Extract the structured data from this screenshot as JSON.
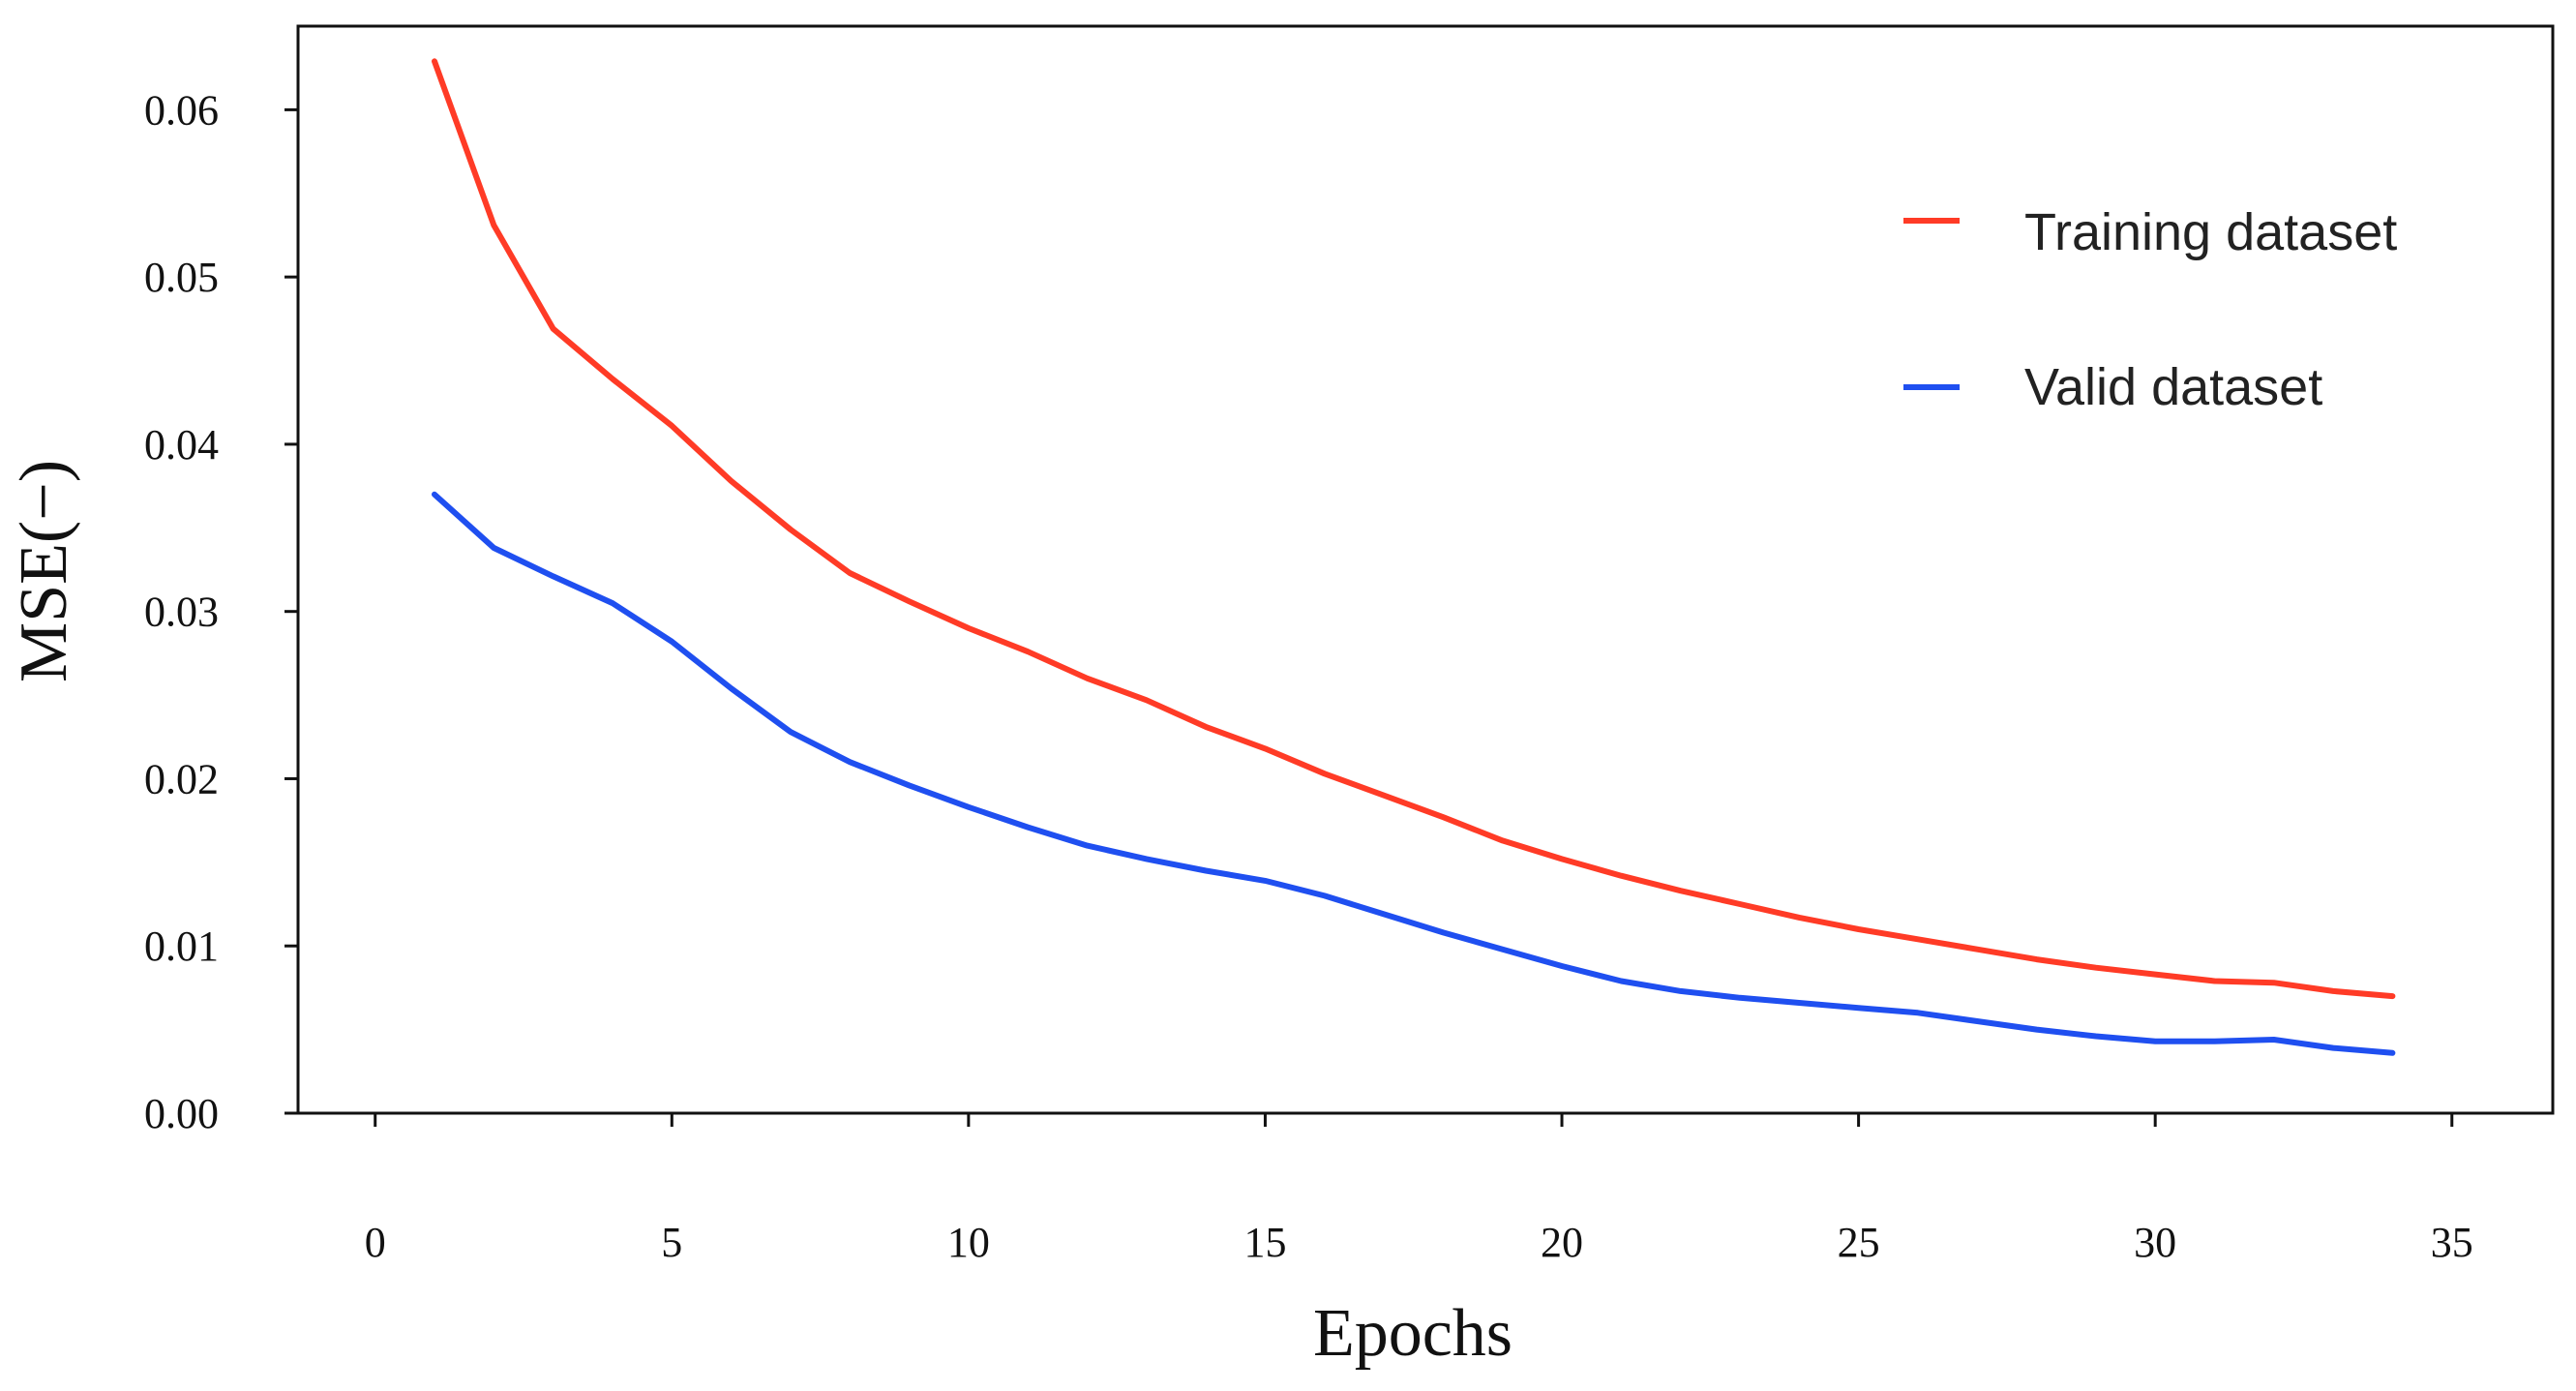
{
  "chart_data": {
    "type": "line",
    "title": "",
    "xlabel": "Epochs",
    "ylabel": "MSE(−)",
    "xlim": [
      -1.3,
      36.7
    ],
    "ylim": [
      0,
      0.065
    ],
    "xticks": [
      0,
      5,
      10,
      15,
      20,
      25,
      30,
      35
    ],
    "xtick_labels": [
      "0",
      "5",
      "10",
      "15",
      "20",
      "25",
      "30",
      "35"
    ],
    "yticks": [
      0,
      0.01,
      0.02,
      0.03,
      0.04,
      0.05,
      0.06
    ],
    "ytick_labels": [
      "0.00",
      "0.01",
      "0.02",
      "0.03",
      "0.04",
      "0.05",
      "0.06"
    ],
    "grid": false,
    "legend_position": "top-right",
    "x": [
      1,
      2,
      3,
      4,
      5,
      6,
      7,
      8,
      9,
      10,
      11,
      12,
      13,
      14,
      15,
      16,
      17,
      18,
      19,
      20,
      21,
      22,
      23,
      24,
      25,
      26,
      27,
      28,
      29,
      30,
      31,
      32,
      33,
      34
    ],
    "series": [
      {
        "name": "Training dataset",
        "color": "#ff3b26",
        "values": [
          0.0629,
          0.0531,
          0.0469,
          0.0439,
          0.0411,
          0.0378,
          0.0349,
          0.0323,
          0.0306,
          0.029,
          0.0276,
          0.026,
          0.0247,
          0.0231,
          0.0218,
          0.0203,
          0.019,
          0.0177,
          0.0163,
          0.0152,
          0.0142,
          0.0133,
          0.0125,
          0.0117,
          0.011,
          0.0104,
          0.0098,
          0.0092,
          0.0087,
          0.0083,
          0.0079,
          0.0078,
          0.0073,
          0.007
        ]
      },
      {
        "name": "Valid dataset",
        "color": "#1f4ff0",
        "values": [
          0.037,
          0.0338,
          0.0321,
          0.0305,
          0.0282,
          0.0254,
          0.0228,
          0.021,
          0.0196,
          0.0183,
          0.0171,
          0.016,
          0.0152,
          0.0145,
          0.0139,
          0.013,
          0.0119,
          0.0108,
          0.0098,
          0.0088,
          0.0079,
          0.0073,
          0.0069,
          0.0066,
          0.0063,
          0.006,
          0.0055,
          0.005,
          0.0046,
          0.0043,
          0.0043,
          0.0044,
          0.0039,
          0.0036
        ]
      }
    ]
  }
}
